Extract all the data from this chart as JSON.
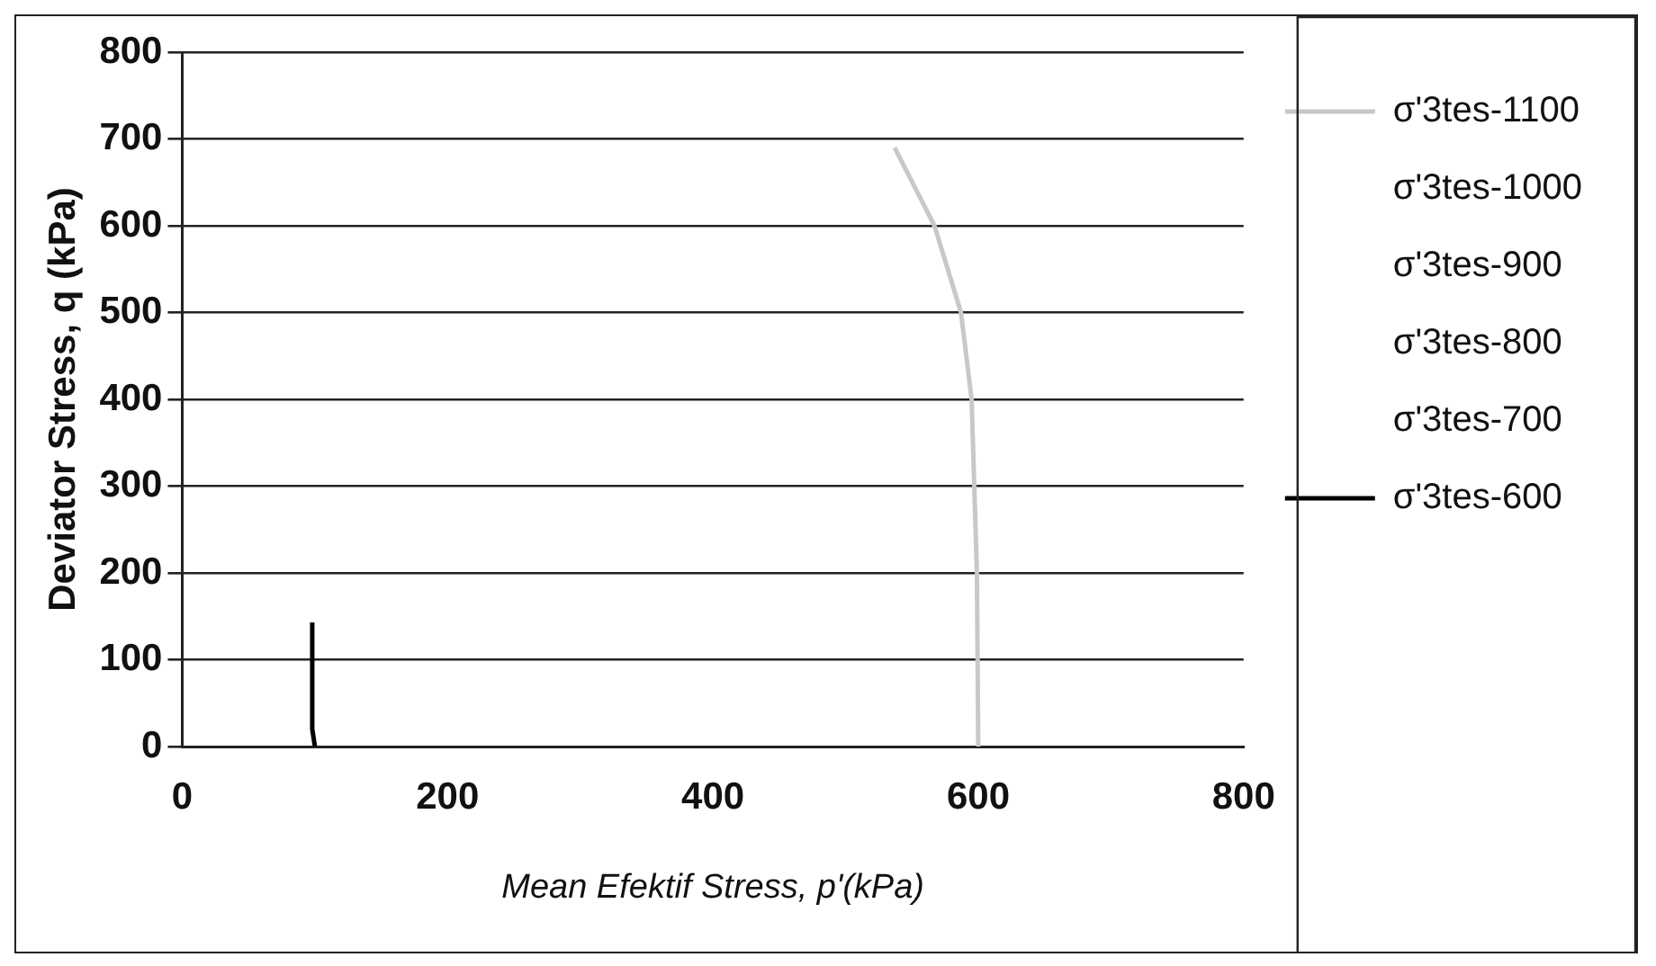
{
  "chart_data": {
    "type": "line",
    "xlabel": "Mean Efektif Stress, p'(kPa)",
    "ylabel": "Deviator Stress, q (kPa)",
    "xlim": [
      0,
      800
    ],
    "xticks": [
      0,
      200,
      400,
      600,
      800
    ],
    "ylim": [
      0,
      800
    ],
    "yticks": [
      0,
      100,
      200,
      300,
      400,
      500,
      600,
      700,
      800
    ],
    "grid": "y",
    "legend": "right",
    "marker": "none",
    "series": [
      {
        "name": "σ'3tes-1100",
        "color": "#c8c8c8",
        "x": [
          600,
          599,
          595,
          587,
          567,
          537
        ],
        "values": [
          0,
          200,
          400,
          500,
          600,
          690
        ]
      },
      {
        "name": "σ'3tes-1000"
      },
      {
        "name": "σ'3tes-900"
      },
      {
        "name": "σ'3tes-800"
      },
      {
        "name": "σ'3tes-700"
      },
      {
        "name": "σ'3tes-600",
        "color": "#000000",
        "x": [
          100,
          98,
          98
        ],
        "values": [
          0,
          20,
          143
        ]
      }
    ]
  }
}
